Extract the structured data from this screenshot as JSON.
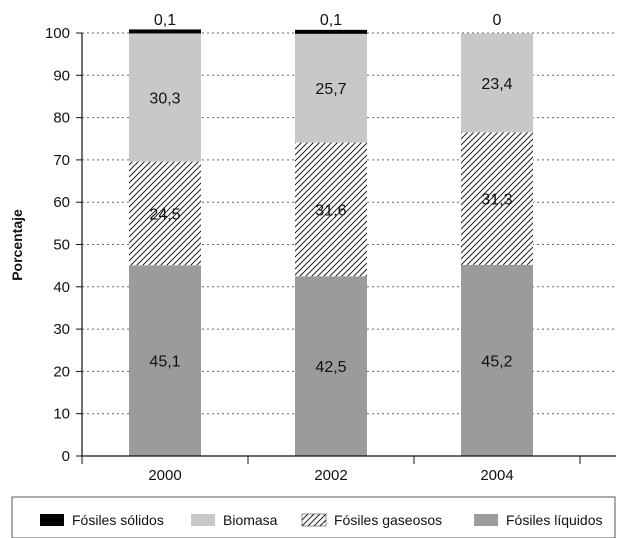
{
  "chart_data": {
    "type": "bar",
    "stacked": true,
    "categories": [
      "2000",
      "2002",
      "2004"
    ],
    "ylabel": "Porcentaje",
    "xlabel": "",
    "ylim": [
      0,
      100
    ],
    "yticks": [
      "0",
      "10",
      "20",
      "30",
      "40",
      "50",
      "60",
      "70",
      "80",
      "90",
      "100"
    ],
    "grid": "horizontal-dotted",
    "legend_position": "bottom",
    "series": [
      {
        "name": "Fósiles líquidos",
        "values": [
          45.1,
          42.5,
          45.2
        ],
        "labels": [
          "45,1",
          "42,5",
          "45,2"
        ],
        "color": "#9b9b9b",
        "pattern": "solid"
      },
      {
        "name": "Fósiles gaseosos",
        "values": [
          24.5,
          31.6,
          31.3
        ],
        "labels": [
          "24,5",
          "31,6",
          "31,3"
        ],
        "color": "#ffffff",
        "pattern": "hatch"
      },
      {
        "name": "Biomasa",
        "values": [
          30.3,
          25.7,
          23.4
        ],
        "labels": [
          "30,3",
          "25,7",
          "23,4"
        ],
        "color": "#c8c8c8",
        "pattern": "solid"
      },
      {
        "name": "Fósiles sólidos",
        "values": [
          0.1,
          0.1,
          0
        ],
        "labels": [
          "0,1",
          "0,1",
          "0"
        ],
        "color": "#000000",
        "pattern": "solid"
      }
    ],
    "legend_order": [
      "Fósiles sólidos",
      "Biomasa",
      "Fósiles gaseosos",
      "Fósiles líquidos"
    ]
  }
}
